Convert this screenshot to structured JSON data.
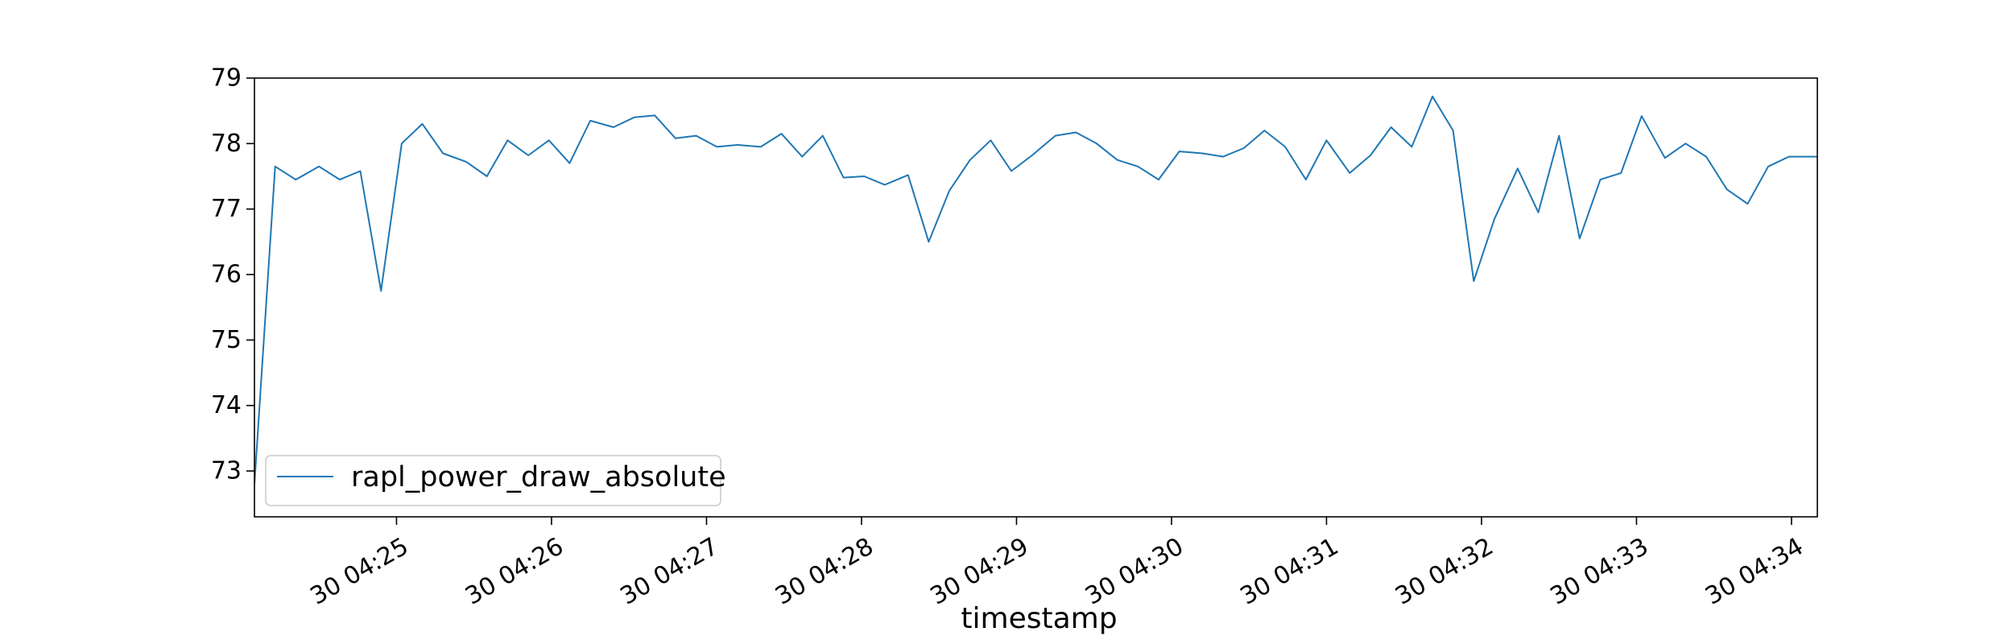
{
  "chart_data": {
    "type": "line",
    "title": "",
    "xlabel": "timestamp",
    "ylabel": "",
    "ylim": [
      72.3,
      79.0
    ],
    "xlim": [
      "04:24:05",
      "04:34:10"
    ],
    "y_ticks": [
      {
        "value": 73,
        "label": "73"
      },
      {
        "value": 74,
        "label": "74"
      },
      {
        "value": 75,
        "label": "75"
      },
      {
        "value": 76,
        "label": "76"
      },
      {
        "value": 77,
        "label": "77"
      },
      {
        "value": 78,
        "label": "78"
      },
      {
        "value": 79,
        "label": "79"
      }
    ],
    "x_ticks": [
      {
        "value": "04:25:00",
        "label": "30 04:25"
      },
      {
        "value": "04:26:00",
        "label": "30 04:26"
      },
      {
        "value": "04:27:00",
        "label": "30 04:27"
      },
      {
        "value": "04:28:00",
        "label": "30 04:28"
      },
      {
        "value": "04:29:00",
        "label": "30 04:29"
      },
      {
        "value": "04:30:00",
        "label": "30 04:30"
      },
      {
        "value": "04:31:00",
        "label": "30 04:31"
      },
      {
        "value": "04:32:00",
        "label": "30 04:32"
      },
      {
        "value": "04:33:00",
        "label": "30 04:33"
      },
      {
        "value": "04:34:00",
        "label": "30 04:34"
      }
    ],
    "legend": {
      "placement": "lower-left"
    },
    "grid": false,
    "series": [
      {
        "name": "rapl_power_draw_absolute",
        "color": "#1f77b4",
        "x": [
          "04:24:05",
          "04:24:13",
          "04:24:21",
          "04:24:30",
          "04:24:38",
          "04:24:46",
          "04:24:54",
          "04:25:02",
          "04:25:10",
          "04:25:18",
          "04:25:27",
          "04:25:35",
          "04:25:43",
          "04:25:51",
          "04:25:59",
          "04:26:07",
          "04:26:15",
          "04:26:24",
          "04:26:32",
          "04:26:40",
          "04:26:48",
          "04:26:56",
          "04:27:04",
          "04:27:12",
          "04:27:21",
          "04:27:29",
          "04:27:37",
          "04:27:45",
          "04:27:53",
          "04:28:01",
          "04:28:09",
          "04:28:18",
          "04:28:26",
          "04:28:34",
          "04:28:42",
          "04:28:50",
          "04:28:58",
          "04:29:06",
          "04:29:15",
          "04:29:23",
          "04:29:31",
          "04:29:39",
          "04:29:47",
          "04:29:55",
          "04:30:03",
          "04:30:12",
          "04:30:20",
          "04:30:28",
          "04:30:36",
          "04:30:44",
          "04:30:52",
          "04:31:00",
          "04:31:09",
          "04:31:17",
          "04:31:25",
          "04:31:33",
          "04:31:41",
          "04:31:49",
          "04:31:57",
          "04:32:05",
          "04:32:14",
          "04:32:22",
          "04:32:30",
          "04:32:38",
          "04:32:46",
          "04:32:54",
          "04:33:02",
          "04:33:11",
          "04:33:19",
          "04:33:27",
          "04:33:35",
          "04:33:43",
          "04:33:51",
          "04:33:59",
          "04:34:07",
          "04:34:10"
        ],
        "values": [
          72.8,
          77.65,
          77.45,
          77.65,
          77.45,
          77.58,
          75.75,
          78.0,
          78.3,
          77.85,
          77.72,
          77.5,
          78.05,
          77.82,
          78.05,
          77.7,
          78.35,
          78.25,
          78.4,
          78.43,
          78.08,
          78.12,
          77.95,
          77.98,
          77.95,
          78.15,
          77.8,
          78.12,
          77.48,
          77.5,
          77.37,
          77.52,
          76.5,
          77.28,
          77.75,
          78.05,
          77.58,
          77.82,
          78.12,
          78.17,
          78.0,
          77.75,
          77.65,
          77.45,
          77.88,
          77.85,
          77.8,
          77.93,
          78.2,
          77.95,
          77.45,
          78.05,
          77.55,
          77.82,
          78.25,
          77.95,
          78.72,
          78.2,
          75.9,
          76.85,
          77.62,
          76.95,
          78.12,
          76.55,
          77.45,
          77.55,
          78.42,
          77.78,
          78.0,
          77.8,
          77.3,
          77.08,
          77.65,
          77.8,
          77.8,
          77.8
        ]
      }
    ]
  }
}
